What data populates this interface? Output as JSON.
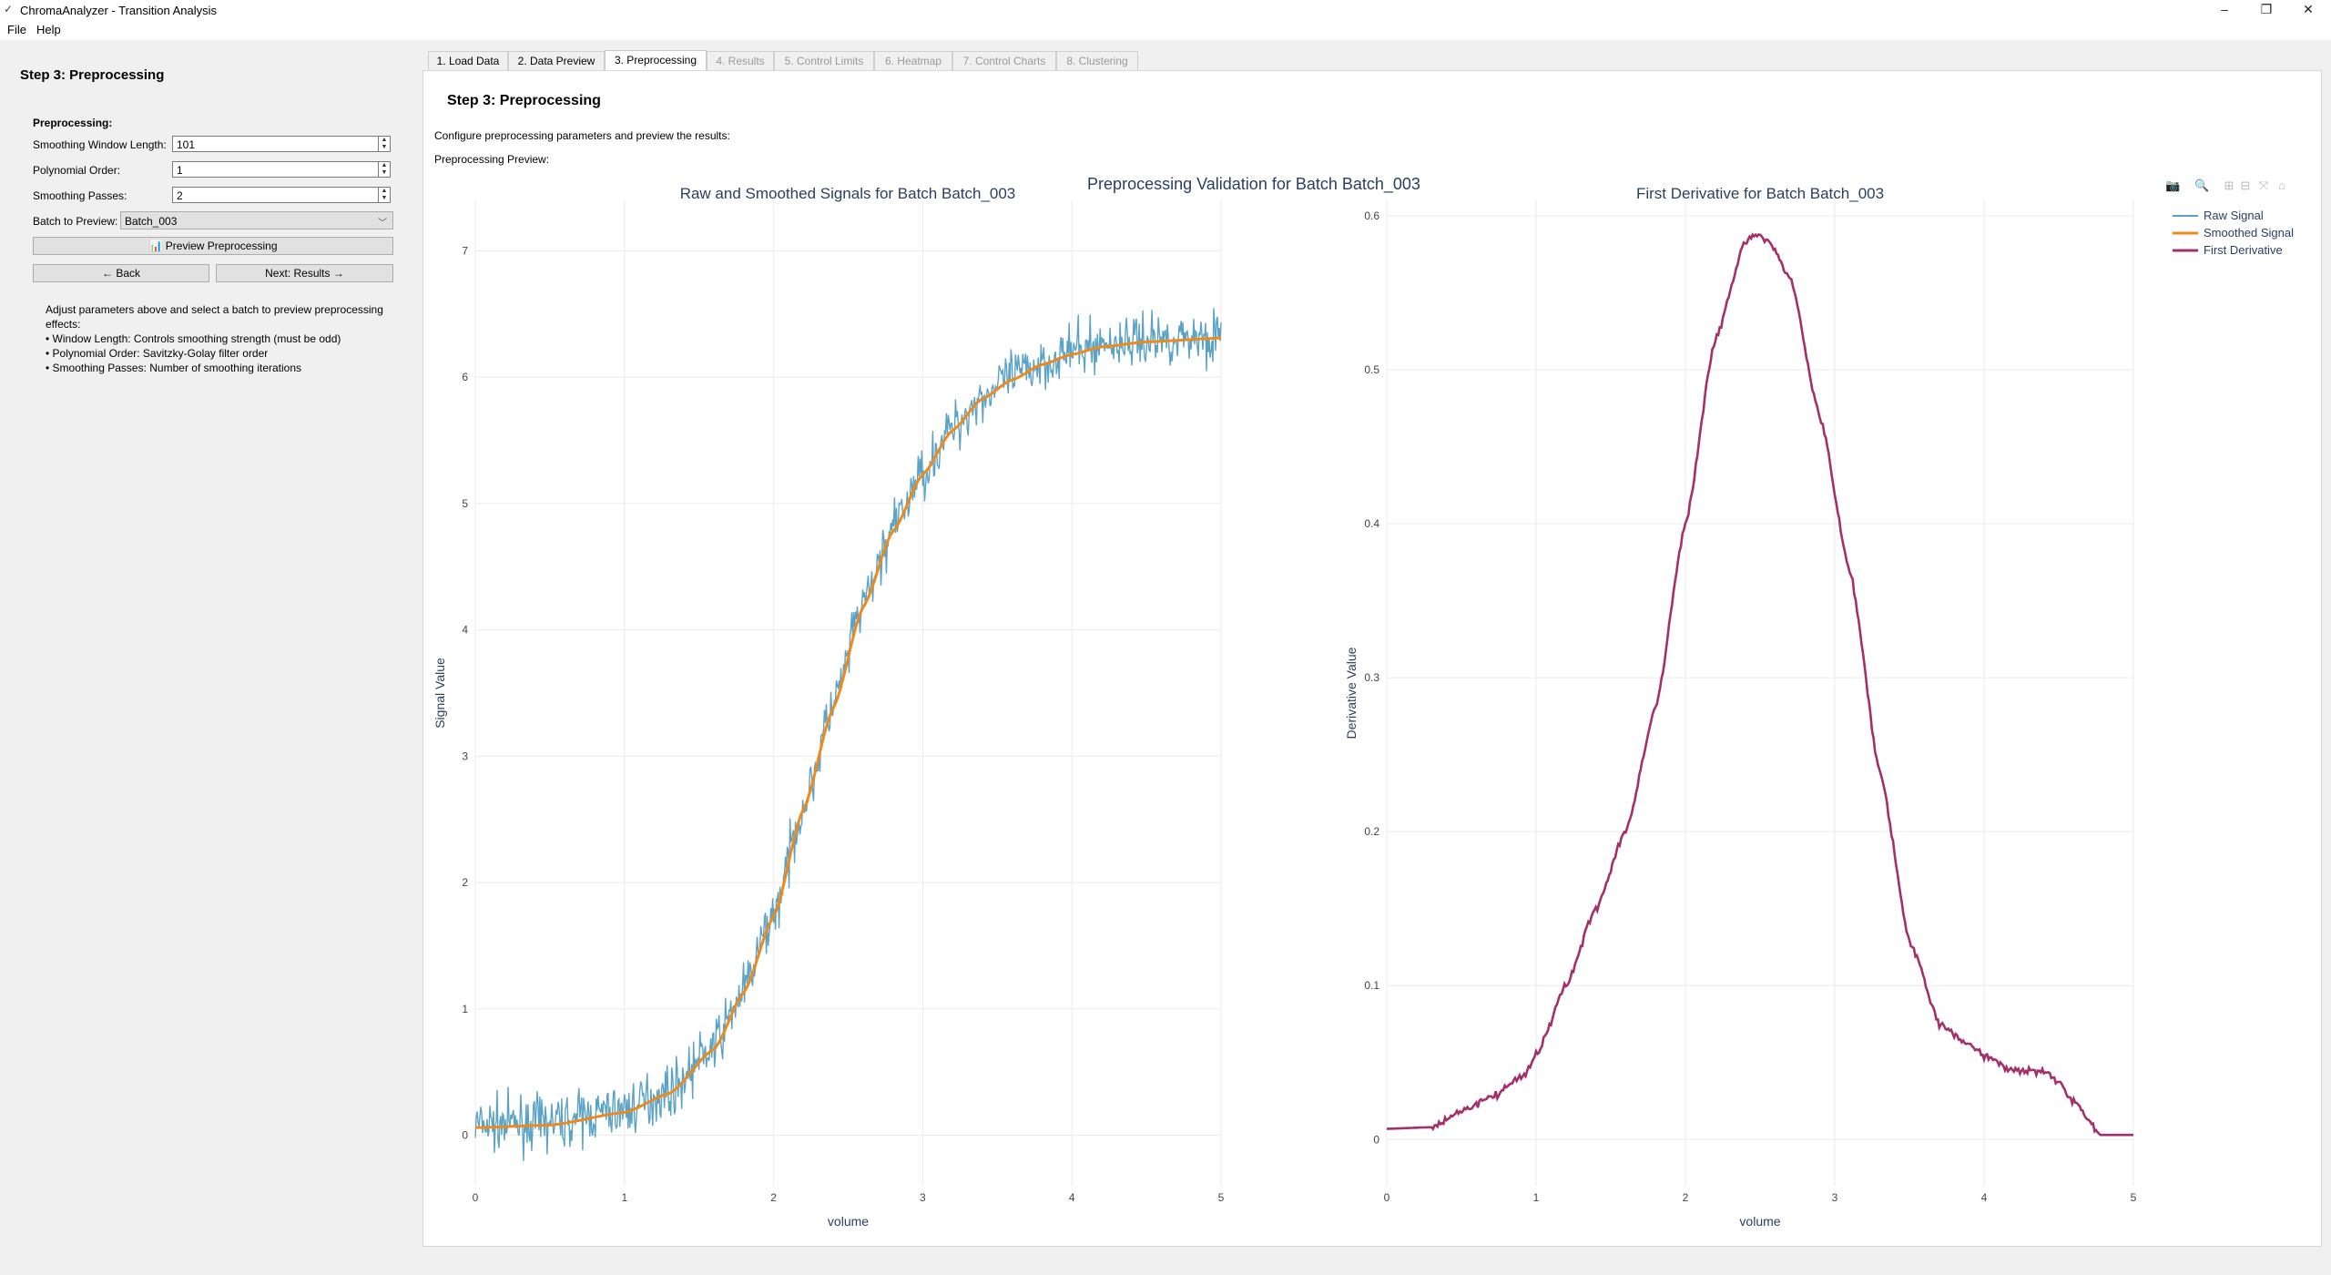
{
  "window": {
    "title": "ChromaAnalyzer - Transition Analysis",
    "controls": [
      "–",
      "❐",
      "✕"
    ]
  },
  "menu": [
    "File",
    "Help"
  ],
  "sidebar": {
    "heading": "Step 3: Preprocessing",
    "section": "Preprocessing:",
    "fields": [
      {
        "label": "Smoothing Window Length:",
        "value": "101"
      },
      {
        "label": "Polynomial Order:",
        "value": "1"
      },
      {
        "label": "Smoothing Passes:",
        "value": "2"
      }
    ],
    "batch_label": "Batch to Preview:",
    "batch_value": "Batch_003",
    "preview_button": "📊 Preview Preprocessing",
    "back_button": "← Back",
    "next_button": "Next: Results →",
    "help_lines": [
      "Adjust parameters above and select a batch to preview preprocessing",
      "effects:",
      "• Window Length: Controls smoothing strength (must be odd)",
      "• Polynomial Order: Savitzky-Golay filter order",
      "• Smoothing Passes: Number of smoothing iterations"
    ]
  },
  "tabs": [
    "1. Load Data",
    "2. Data Preview",
    "3. Preprocessing",
    "4. Results",
    "5. Control Limits",
    "6. Heatmap",
    "7. Control Charts",
    "8. Clustering"
  ],
  "active_tab": 2,
  "main": {
    "heading": "Step 3: Preprocessing",
    "description": "Configure preprocessing parameters and preview the results:",
    "preview_label": "Preprocessing Preview:"
  },
  "colors": {
    "raw": "#5ba3c6",
    "smoothed": "#ee8a1c",
    "derivative": "#a3306b",
    "plot_title": "#2a3f5f",
    "grid": "#ebebeb"
  },
  "modebar_icons": [
    "camera-icon",
    "zoom-icon",
    "zoom-in-icon",
    "zoom-out-icon",
    "autoscale-icon",
    "home-icon"
  ],
  "chart_data": [
    {
      "type": "line",
      "title": "Raw and Smoothed Signals for Batch Batch_003",
      "suptitle": "Preprocessing Validation for Batch Batch_003",
      "xlabel": "volume",
      "ylabel": "Signal Value",
      "xlim": [
        0,
        5
      ],
      "ylim": [
        -0.4,
        7.4
      ],
      "xticks": [
        0,
        1,
        2,
        3,
        4,
        5
      ],
      "yticks": [
        0,
        1,
        2,
        3,
        4,
        5,
        6,
        7
      ],
      "series": [
        {
          "name": "Raw Signal",
          "type": "noisy",
          "x": [
            0,
            0.5,
            1.0,
            1.3,
            1.6,
            1.8,
            2.0,
            2.2,
            2.4,
            2.6,
            2.8,
            3.0,
            3.2,
            3.4,
            3.6,
            3.8,
            4.0,
            4.2,
            4.5,
            5.0
          ],
          "y": [
            0.08,
            0.1,
            0.2,
            0.35,
            0.7,
            1.15,
            1.75,
            2.6,
            3.4,
            4.2,
            4.8,
            5.25,
            5.6,
            5.85,
            6.0,
            6.12,
            6.2,
            6.26,
            6.3,
            6.33
          ],
          "noise": 0.2
        },
        {
          "name": "Smoothed Signal",
          "x": [
            0,
            0.5,
            1.0,
            1.3,
            1.6,
            1.8,
            2.0,
            2.2,
            2.4,
            2.6,
            2.8,
            3.0,
            3.2,
            3.4,
            3.6,
            3.8,
            4.0,
            4.2,
            4.5,
            5.0
          ],
          "y": [
            0.06,
            0.08,
            0.18,
            0.33,
            0.68,
            1.13,
            1.73,
            2.58,
            3.38,
            4.18,
            4.78,
            5.23,
            5.58,
            5.83,
            5.98,
            6.1,
            6.18,
            6.24,
            6.28,
            6.31
          ]
        }
      ]
    },
    {
      "type": "line",
      "title": "First Derivative for Batch Batch_003",
      "xlabel": "volume",
      "ylabel": "Derivative Value",
      "xlim": [
        0,
        5
      ],
      "ylim": [
        -0.03,
        0.61
      ],
      "xticks": [
        0,
        1,
        2,
        3,
        4,
        5
      ],
      "yticks": [
        0,
        0.1,
        0.2,
        0.3,
        0.4,
        0.5,
        0.6
      ],
      "legend": [
        "Raw Signal",
        "Smoothed Signal",
        "First Derivative"
      ],
      "series": [
        {
          "name": "First Derivative",
          "x": [
            0,
            0.3,
            0.5,
            0.7,
            0.9,
            1.0,
            1.2,
            1.4,
            1.6,
            1.8,
            2.0,
            2.2,
            2.4,
            2.45,
            2.55,
            2.7,
            2.9,
            3.1,
            3.3,
            3.5,
            3.7,
            3.85,
            4.0,
            4.2,
            4.4,
            4.5,
            4.6,
            4.7,
            4.78,
            5.0
          ],
          "y": [
            0.007,
            0.008,
            0.018,
            0.028,
            0.04,
            0.055,
            0.1,
            0.15,
            0.2,
            0.28,
            0.4,
            0.52,
            0.583,
            0.587,
            0.585,
            0.56,
            0.47,
            0.37,
            0.24,
            0.13,
            0.075,
            0.065,
            0.055,
            0.045,
            0.045,
            0.038,
            0.025,
            0.012,
            0.003,
            0.003
          ]
        }
      ]
    }
  ]
}
